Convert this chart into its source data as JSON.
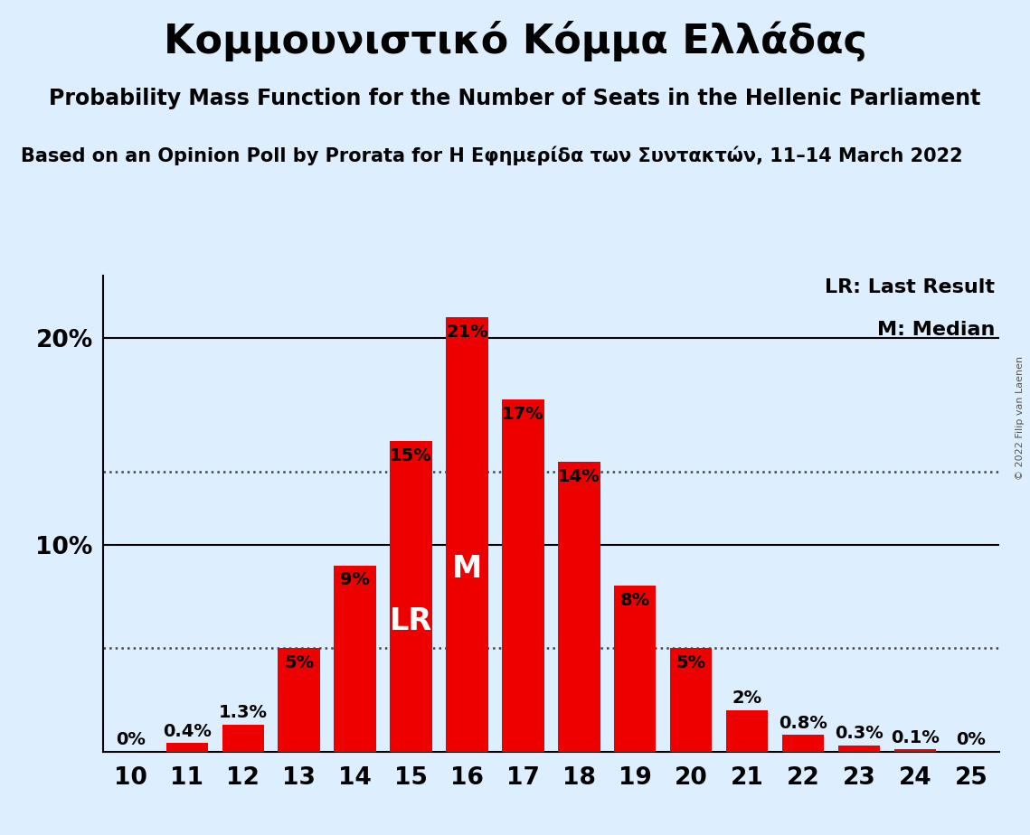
{
  "title": "Κομμουνιστικό Κόμμα Ελλάδας",
  "subtitle": "Probability Mass Function for the Number of Seats in the Hellenic Parliament",
  "source": "Based on an Opinion Poll by Prorata for Η Εφημερίδα των Συντακτών, 11–14 March 2022",
  "copyright": "© 2022 Filip van Laenen",
  "seats": [
    10,
    11,
    12,
    13,
    14,
    15,
    16,
    17,
    18,
    19,
    20,
    21,
    22,
    23,
    24,
    25
  ],
  "probabilities": [
    0.0,
    0.4,
    1.3,
    5.0,
    9.0,
    15.0,
    21.0,
    17.0,
    14.0,
    8.0,
    5.0,
    2.0,
    0.8,
    0.3,
    0.1,
    0.0
  ],
  "bar_color": "#ee0000",
  "background_color": "#ddeeff",
  "text_color": "#000000",
  "label_color_inside": "#ffffff",
  "label_color_outside": "#000000",
  "lr_seat": 15,
  "median_seat": 16,
  "lr_label": "LR",
  "median_label": "M",
  "legend_lr": "LR: Last Result",
  "legend_m": "M: Median",
  "ylim": [
    0,
    23
  ],
  "dotted_lines": [
    5.0,
    13.5
  ],
  "solid_lines": [
    10.0,
    20.0
  ],
  "bar_width": 0.75,
  "title_fontsize": 32,
  "subtitle_fontsize": 17,
  "source_fontsize": 15,
  "label_fontsize": 14,
  "tick_fontsize": 19,
  "legend_fontsize": 16
}
